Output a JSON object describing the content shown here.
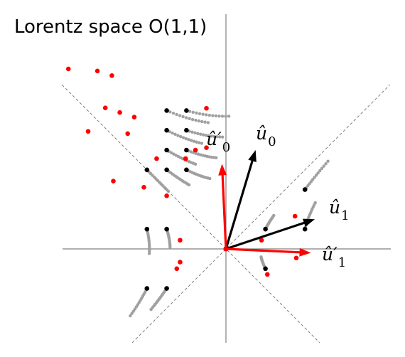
{
  "title": "Lorentz space O(1,1)",
  "colors": {
    "axis": "#808080",
    "light_cone": "#808080",
    "trail": "#a0a0a0",
    "point_original": "#000000",
    "point_transformed": "#ff0000",
    "basis_vector": "#000000",
    "transformed_vector": "#ff0000"
  },
  "vectors": {
    "u0": {
      "label": "û",
      "sub": "0"
    },
    "u1": {
      "label": "û",
      "sub": "1"
    },
    "u0_prime": {
      "label": "û′",
      "sub": "0"
    },
    "u1_prime": {
      "label": "û′",
      "sub": "1"
    }
  },
  "chart_data": {
    "type": "scatter",
    "title": "Lorentz space O(1,1)",
    "boost": {
      "parameter_b": 0.34
    },
    "series": [
      {
        "points": [
          [
            -3,
            7
          ],
          [
            -2,
            7
          ],
          [
            -3,
            6
          ],
          [
            -2,
            6
          ],
          [
            -3,
            5
          ],
          [
            -2,
            5
          ],
          [
            -4,
            4
          ],
          [
            -3,
            4
          ],
          [
            -2,
            4
          ],
          [
            -4,
            1
          ],
          [
            -3,
            1
          ],
          [
            -4,
            -2
          ],
          [
            -3,
            -2
          ],
          [
            2,
            1
          ],
          [
            4,
            1
          ],
          [
            2,
            -1
          ],
          [
            4,
            3
          ]
        ]
      },
      {
        "points": [
          [
            -7.977,
            9.103
          ],
          [
            -6.508,
            9.001
          ],
          [
            -5.775,
            8.767
          ],
          [
            -0.988,
            7.113
          ],
          [
            -6.108,
            7.133
          ],
          [
            -5.375,
            6.9
          ],
          [
            -4.642,
            6.666
          ],
          [
            -4.975,
            5.831
          ],
          [
            -0.987,
            5.12
          ],
          [
            -6.976,
            5.944
          ],
          [
            -3.509,
            4.565
          ],
          [
            -2.042,
            4.565
          ],
          [
            -1.542,
            4.998
          ],
          [
            -5.701,
            3.428
          ],
          [
            -4.154,
            3.118
          ],
          [
            -3.0,
            2.688
          ],
          [
            -2.322,
            0.44
          ],
          [
            -2.489,
            -1.001
          ],
          [
            -2.322,
            -0.669
          ],
          [
            1.802,
            0.44
          ],
          [
            3.561,
            -0.459
          ],
          [
            2.096,
            -1.292
          ],
          [
            3.496,
            1.655
          ]
        ]
      }
    ],
    "basis_vectors": {
      "u0": [
        1.5,
        5.0
      ],
      "u1": [
        4.5,
        1.5
      ],
      "u0_prime": [
        -0.2,
        4.3
      ],
      "u1_prime": [
        4.3,
        -0.2
      ]
    },
    "light_cone": "y = ±x",
    "axes_visible": false,
    "grid": false
  }
}
